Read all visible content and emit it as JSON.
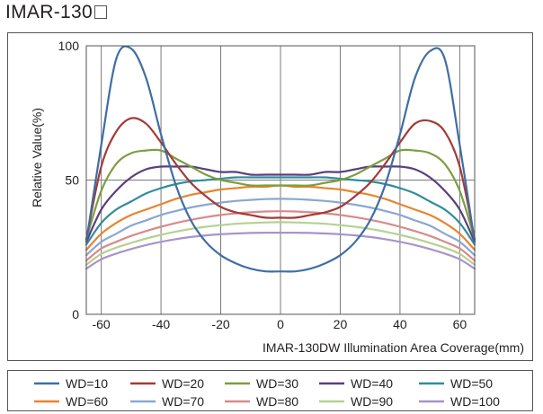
{
  "page": {
    "title": "IMAR-130",
    "title_suffix_icon": "empty-square-icon"
  },
  "chart_data": {
    "type": "line",
    "title": "",
    "xlabel": "IMAR-130DW  Illumination Area Coverage(mm)",
    "ylabel": "Relative Value(%)",
    "xlim": [
      -65,
      65
    ],
    "ylim": [
      0,
      100
    ],
    "x_ticks": [
      -60,
      -40,
      -20,
      0,
      20,
      40,
      60
    ],
    "y_ticks": [
      0,
      50,
      100
    ],
    "grid": true,
    "legend_position": "bottom",
    "x": [
      -65,
      -60,
      -55,
      -50,
      -45,
      -40,
      -35,
      -30,
      -25,
      -20,
      -15,
      -10,
      -5,
      0,
      5,
      10,
      15,
      20,
      25,
      30,
      35,
      40,
      45,
      50,
      55,
      60,
      65
    ],
    "series": [
      {
        "name": "WD=10",
        "color": "#3f6ea3",
        "values": [
          27,
          63,
          95,
          99,
          88,
          67,
          48,
          35,
          27,
          22,
          19,
          17,
          16,
          16,
          16,
          17,
          19,
          22,
          27,
          35,
          48,
          67,
          88,
          98,
          95,
          63,
          27
        ]
      },
      {
        "name": "WD=20",
        "color": "#a33a36",
        "values": [
          28,
          55,
          68,
          73,
          71,
          64,
          56,
          49,
          44,
          40,
          38,
          37,
          36,
          36,
          36,
          37,
          38,
          40,
          44,
          49,
          56,
          64,
          71,
          72,
          68,
          55,
          28
        ]
      },
      {
        "name": "WD=30",
        "color": "#7c9e3f",
        "values": [
          28,
          46,
          56,
          60,
          61,
          61,
          58,
          55,
          52,
          50,
          49,
          48,
          48,
          48,
          48,
          48,
          49,
          50,
          52,
          55,
          58,
          61,
          61,
          60,
          56,
          46,
          28
        ]
      },
      {
        "name": "WD=40",
        "color": "#5a3f7d",
        "values": [
          27,
          39,
          46,
          51,
          54,
          55,
          55,
          55,
          54,
          53,
          53,
          52,
          52,
          52,
          52,
          52,
          53,
          53,
          54,
          55,
          55,
          55,
          54,
          51,
          46,
          39,
          27
        ]
      },
      {
        "name": "WD=50",
        "color": "#2f8c9d",
        "values": [
          26,
          34,
          39,
          42,
          45,
          47,
          48.5,
          49.5,
          50,
          50.5,
          51,
          51,
          51,
          51,
          51,
          51,
          51,
          50.5,
          50,
          49.5,
          48.5,
          47,
          45,
          42,
          39,
          34,
          26
        ]
      },
      {
        "name": "WD=60",
        "color": "#e8842f",
        "values": [
          24,
          30,
          34,
          37,
          39,
          41,
          43,
          44.5,
          45.5,
          46.5,
          47,
          47.5,
          47.5,
          48,
          47.5,
          47.5,
          47,
          46.5,
          45.5,
          44.5,
          43,
          41,
          39,
          37,
          34,
          30,
          24
        ]
      },
      {
        "name": "WD=70",
        "color": "#8aa7d2",
        "values": [
          22,
          27,
          30,
          33,
          35,
          37,
          38.5,
          39.8,
          40.8,
          41.6,
          42.2,
          42.6,
          42.9,
          43,
          42.9,
          42.6,
          42.2,
          41.6,
          40.8,
          39.8,
          38.5,
          37,
          35,
          33,
          30,
          27,
          22
        ]
      },
      {
        "name": "WD=80",
        "color": "#d88a8a",
        "values": [
          20,
          24.5,
          27,
          29.2,
          31,
          32.6,
          34,
          35.2,
          36.2,
          37,
          37.6,
          38,
          38.3,
          38.4,
          38.3,
          38,
          37.6,
          37,
          36.2,
          35.2,
          34,
          32.6,
          31,
          29.2,
          27,
          24.5,
          20
        ]
      },
      {
        "name": "WD=90",
        "color": "#b5d191",
        "values": [
          18.5,
          22.5,
          24.8,
          26.6,
          28.2,
          29.6,
          30.8,
          31.8,
          32.6,
          33.2,
          33.7,
          34,
          34.2,
          34.3,
          34.2,
          34,
          33.7,
          33.2,
          32.6,
          31.8,
          30.8,
          29.6,
          28.2,
          26.6,
          24.8,
          22.5,
          18.5
        ]
      },
      {
        "name": "WD=100",
        "color": "#a894c7",
        "values": [
          17,
          20.5,
          22.6,
          24.3,
          25.8,
          27,
          28,
          28.8,
          29.4,
          29.8,
          30.1,
          30.3,
          30.4,
          30.4,
          30.4,
          30.3,
          30.1,
          29.8,
          29.4,
          28.8,
          28,
          27,
          25.8,
          24.3,
          22.6,
          20.5,
          17
        ]
      }
    ]
  }
}
